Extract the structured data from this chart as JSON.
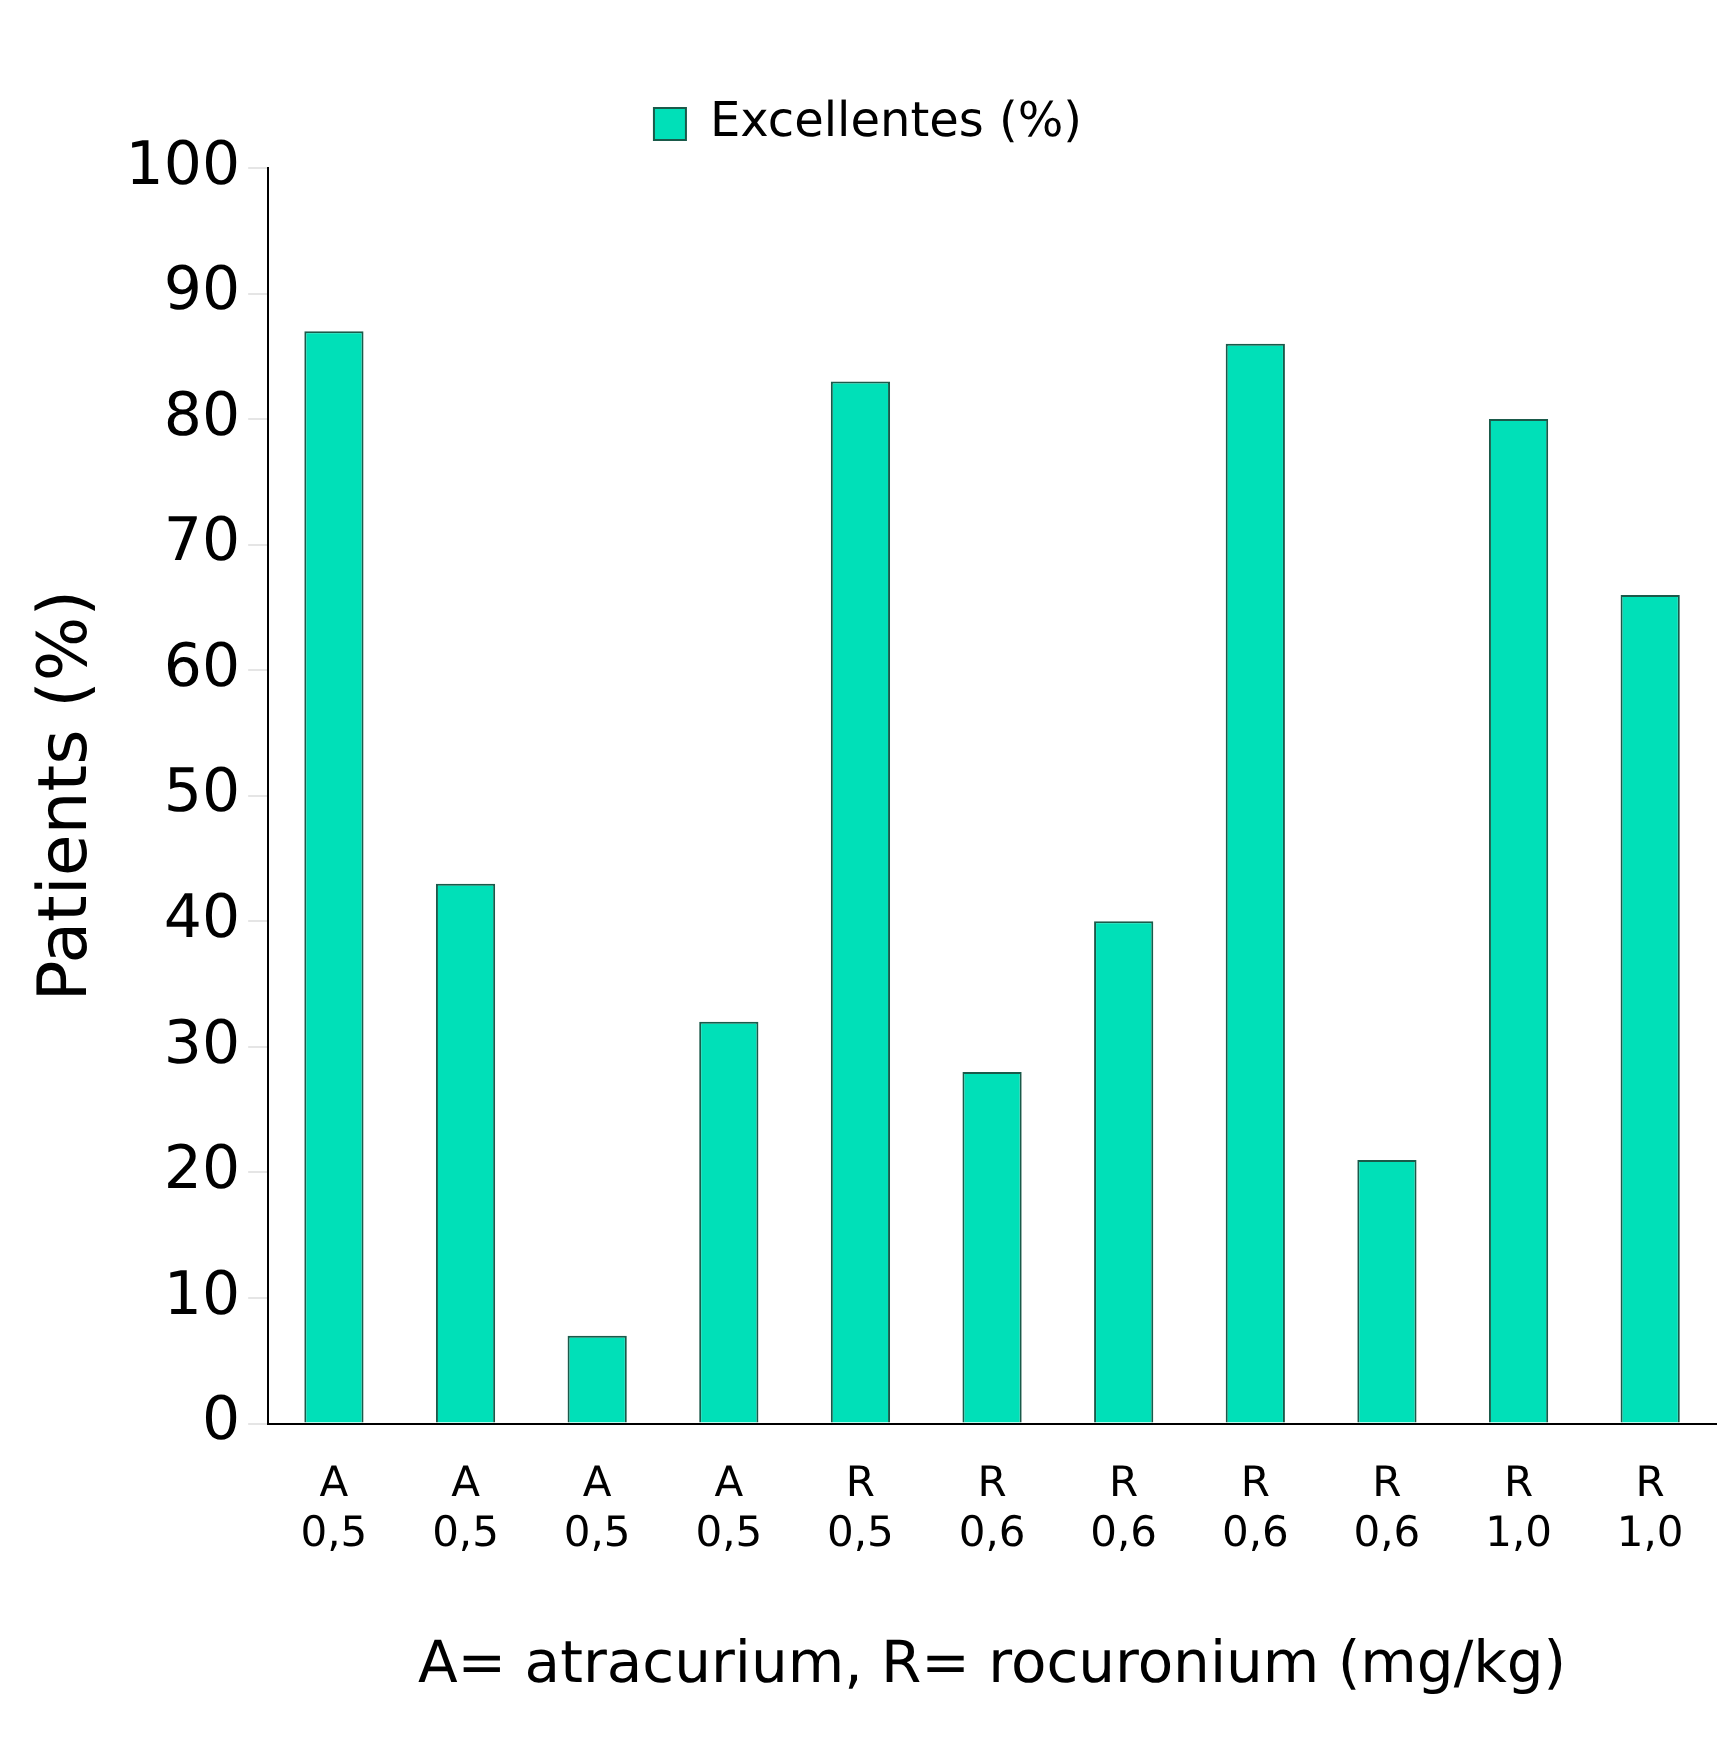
{
  "chart_data": {
    "type": "bar",
    "xlabel": "A= atracurium, R= rocuronium (mg/kg)",
    "ylabel": "Patients (%)",
    "categories": [
      "A\n0,5",
      "A\n0,5",
      "A\n0,5",
      "A\n0,5",
      "R\n0,5",
      "R\n0,6",
      "R\n0,6",
      "R\n0,6",
      "R\n0,6",
      "R\n1,0",
      "R\n1,0"
    ],
    "series": [
      {
        "name": "Excellentes (%)",
        "color": "#00e0b8",
        "values": [
          87,
          43,
          7,
          32,
          83,
          28,
          40,
          86,
          21,
          80,
          66
        ]
      }
    ],
    "ylim": [
      0,
      100
    ],
    "yticks": [
      0,
      10,
      20,
      30,
      40,
      50,
      60,
      70,
      80,
      90,
      100
    ],
    "grid": false,
    "legend": "top"
  }
}
